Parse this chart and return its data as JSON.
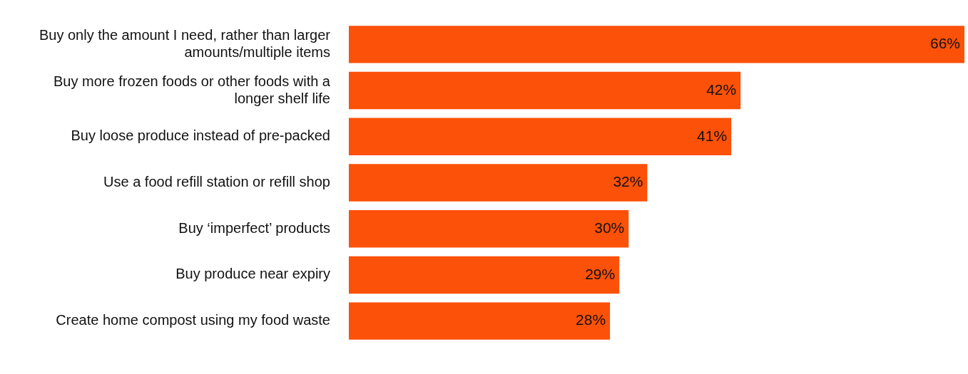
{
  "chart_data": {
    "type": "bar",
    "orientation": "horizontal",
    "categories": [
      "Buy only the amount I need, rather than larger amounts/multiple items",
      "Buy more frozen foods or other foods with a longer shelf life",
      "Buy loose produce instead of pre-packed",
      "Use a food refill station or refill shop",
      "Buy ‘imperfect’ products",
      "Buy produce near expiry",
      "Create home compost using my food waste"
    ],
    "values": [
      66,
      42,
      41,
      32,
      30,
      29,
      28
    ],
    "color": "#fc5108",
    "value_labels": [
      "66%",
      "42%",
      "41%",
      "32%",
      "30%",
      "29%",
      "28%"
    ],
    "xlim": [
      0,
      66
    ],
    "tick_labels": "y",
    "legend": false
  }
}
